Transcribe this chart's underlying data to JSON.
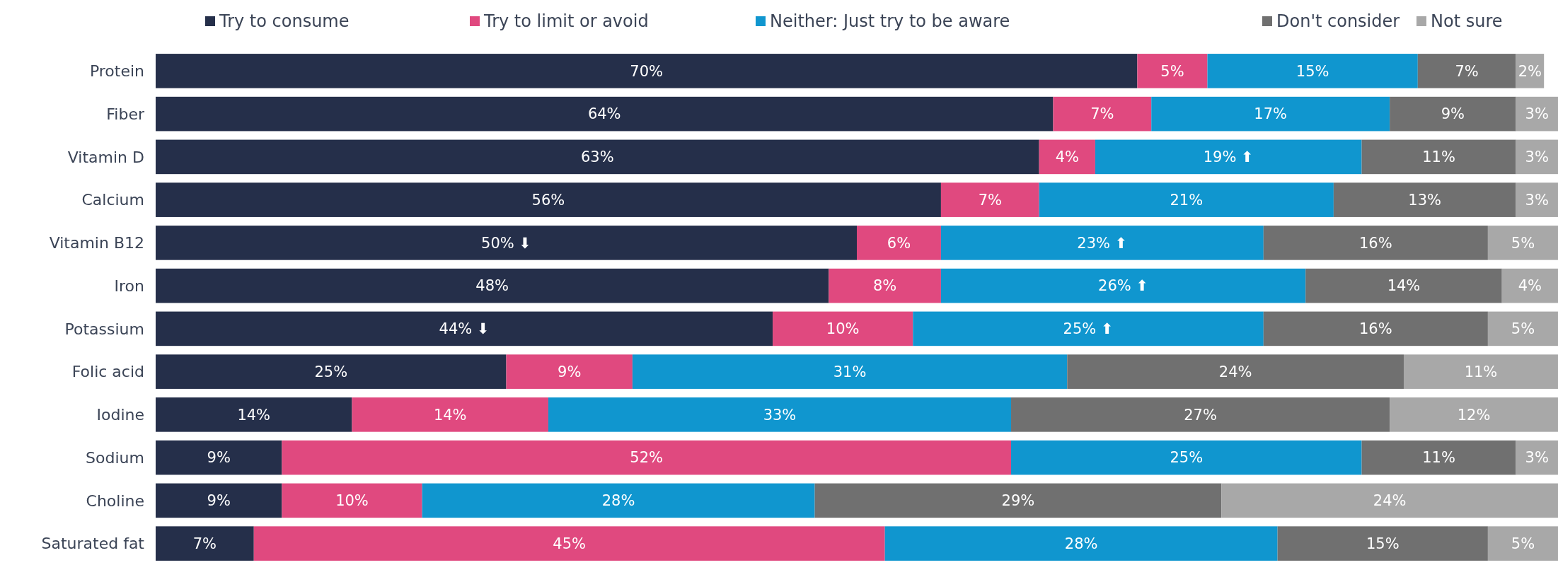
{
  "chart_data": {
    "type": "bar",
    "orientation": "horizontal",
    "stacked": true,
    "xlim": [
      0,
      100
    ],
    "tick_labels": "y",
    "legend": "top",
    "categories": [
      "Protein",
      "Fiber",
      "Vitamin D",
      "Calcium",
      "Vitamin B12",
      "Iron",
      "Potassium",
      "Folic acid",
      "Iodine",
      "Sodium",
      "Choline",
      "Saturated fat"
    ],
    "series": [
      {
        "name": "Try to consume",
        "color": "#252f4a",
        "values": [
          70,
          64,
          63,
          56,
          50,
          48,
          44,
          25,
          14,
          9,
          9,
          7
        ],
        "value_labels": [
          "70%",
          "64%",
          "63%",
          "56%",
          "50% ⬇",
          "48%",
          "44% ⬇",
          "25%",
          "14%",
          "9%",
          "9%",
          "7%"
        ]
      },
      {
        "name": "Try to limit or avoid",
        "color": "#e0497f",
        "values": [
          5,
          7,
          4,
          7,
          6,
          8,
          10,
          9,
          14,
          52,
          10,
          45
        ],
        "value_labels": [
          "5%",
          "7%",
          "4%",
          "7%",
          "6%",
          "8%",
          "10%",
          "9%",
          "14%",
          "52%",
          "10%",
          "45%"
        ]
      },
      {
        "name": "Neither: Just try to be aware",
        "color": "#1096cf",
        "values": [
          15,
          17,
          19,
          21,
          23,
          26,
          25,
          31,
          33,
          25,
          28,
          28
        ],
        "value_labels": [
          "15%",
          "17%",
          "19% ⬆",
          "21%",
          "23% ⬆",
          "26% ⬆",
          "25% ⬆",
          "31%",
          "33%",
          "25%",
          "28%",
          "28%"
        ]
      },
      {
        "name": "Don't consider",
        "color": "#707070",
        "values": [
          7,
          9,
          11,
          13,
          16,
          14,
          16,
          24,
          27,
          11,
          29,
          15
        ],
        "value_labels": [
          "7%",
          "9%",
          "11%",
          "13%",
          "16%",
          "14%",
          "16%",
          "24%",
          "27%",
          "11%",
          "29%",
          "15%"
        ]
      },
      {
        "name": "Not sure",
        "color": "#a8a8a8",
        "values": [
          2,
          3,
          3,
          3,
          5,
          4,
          5,
          11,
          12,
          3,
          24,
          5
        ],
        "value_labels": [
          "2%",
          "3%",
          "3%",
          "3%",
          "5%",
          "4%",
          "5%",
          "11%",
          "12%",
          "3%",
          "24%",
          "5%"
        ]
      }
    ]
  }
}
